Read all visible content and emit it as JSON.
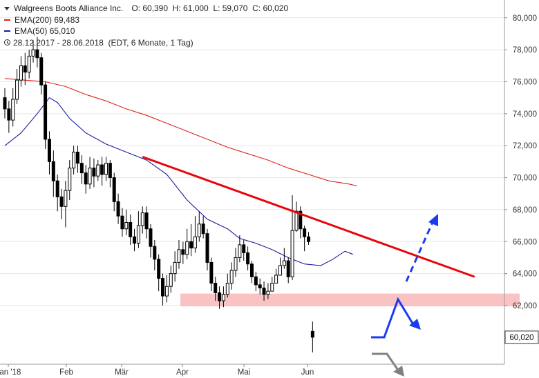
{
  "header": {
    "title": "Walgreens Boots Alliance Inc.",
    "ohlc": "O: 60,390  H: 61,000  L: 59,070  C: 60,020",
    "ema200_label": "EMA(200)",
    "ema200_value": "69,483",
    "ema50_label": "EMA(50)",
    "ema50_value": "65,010",
    "period": "28.12.2017 - 28.06.2018",
    "period_note": "(EDT, 6 Monate, 1 Tag)"
  },
  "colors": {
    "ema200": "#e0201b",
    "ema50": "#1c1c9c",
    "trendline": "#e8050b",
    "support_zone": "#f9b9b9",
    "arrow_blue": "#1a3bf2",
    "arrow_gray": "#808080",
    "candle": "#000000"
  },
  "chart_data": {
    "type": "candlestick",
    "ylim": [
      59.0,
      82.4
    ],
    "yticks": [
      "62,000",
      "64,000",
      "66,000",
      "68,000",
      "70,000",
      "72,000",
      "74,000",
      "76,000",
      "78,000",
      "80,000",
      "82,000"
    ],
    "xlabels": [
      "Jan '18",
      "Feb",
      "Mär",
      "Apr",
      "Mai",
      "Jun"
    ],
    "last_price_label": "60,020",
    "candles": [
      [
        75.0,
        74.3,
        75.6,
        73.7
      ],
      [
        74.3,
        73.6,
        74.8,
        72.8
      ],
      [
        73.6,
        74.9,
        75.6,
        73.2
      ],
      [
        74.9,
        76.1,
        76.8,
        74.6
      ],
      [
        76.1,
        77.0,
        77.6,
        75.7
      ],
      [
        77.0,
        76.6,
        77.8,
        75.8
      ],
      [
        76.6,
        77.6,
        78.0,
        76.2
      ],
      [
        77.6,
        78.0,
        78.6,
        77.2
      ],
      [
        78.0,
        77.5,
        78.8,
        76.9
      ],
      [
        77.5,
        75.8,
        77.8,
        75.2
      ],
      [
        75.8,
        72.4,
        76.0,
        71.8
      ],
      [
        72.4,
        71.0,
        72.9,
        70.2
      ],
      [
        71.0,
        69.8,
        71.7,
        68.8
      ],
      [
        69.8,
        68.8,
        70.2,
        67.9
      ],
      [
        68.8,
        68.2,
        69.3,
        67.4
      ],
      [
        68.2,
        69.2,
        69.8,
        66.9
      ],
      [
        69.2,
        70.6,
        71.1,
        68.6
      ],
      [
        70.6,
        71.6,
        72.0,
        70.2
      ],
      [
        71.6,
        70.9,
        72.0,
        70.3
      ],
      [
        70.9,
        70.3,
        71.4,
        69.6
      ],
      [
        70.3,
        69.6,
        70.8,
        69.0
      ],
      [
        69.6,
        70.6,
        71.3,
        69.3
      ],
      [
        70.6,
        70.1,
        71.2,
        69.4
      ],
      [
        70.1,
        70.8,
        71.1,
        69.8
      ],
      [
        70.8,
        70.2,
        71.3,
        69.5
      ],
      [
        70.2,
        70.9,
        71.3,
        69.8
      ],
      [
        70.9,
        70.0,
        71.1,
        69.4
      ],
      [
        70.0,
        68.5,
        70.3,
        67.9
      ],
      [
        68.5,
        67.6,
        69.0,
        67.1
      ],
      [
        67.6,
        66.8,
        68.1,
        66.3
      ],
      [
        66.8,
        67.2,
        68.0,
        66.4
      ],
      [
        67.2,
        66.3,
        67.7,
        65.8
      ],
      [
        66.3,
        65.9,
        66.8,
        65.4
      ],
      [
        65.9,
        67.0,
        67.9,
        65.6
      ],
      [
        67.0,
        67.8,
        68.2,
        66.5
      ],
      [
        67.8,
        66.8,
        68.2,
        66.2
      ],
      [
        66.8,
        65.7,
        67.1,
        65.0
      ],
      [
        65.7,
        64.9,
        66.1,
        64.2
      ],
      [
        64.9,
        63.7,
        65.2,
        62.9
      ],
      [
        63.7,
        62.6,
        64.0,
        62.0
      ],
      [
        62.6,
        63.2,
        63.9,
        62.2
      ],
      [
        63.2,
        64.0,
        64.5,
        62.8
      ],
      [
        64.0,
        64.7,
        65.4,
        63.5
      ],
      [
        64.7,
        65.5,
        66.1,
        64.3
      ],
      [
        65.5,
        65.2,
        66.0,
        64.6
      ],
      [
        65.2,
        66.0,
        66.8,
        64.9
      ],
      [
        66.0,
        65.6,
        67.1,
        65.1
      ],
      [
        65.6,
        66.3,
        67.6,
        65.3
      ],
      [
        66.3,
        67.1,
        67.9,
        66.0
      ],
      [
        67.1,
        66.5,
        67.6,
        66.2
      ],
      [
        66.5,
        64.7,
        66.8,
        64.2
      ],
      [
        64.7,
        63.4,
        65.0,
        62.9
      ],
      [
        63.4,
        62.8,
        63.8,
        62.3
      ],
      [
        62.8,
        62.3,
        63.2,
        61.8
      ],
      [
        62.3,
        62.7,
        63.2,
        61.9
      ],
      [
        62.7,
        63.4,
        64.0,
        62.5
      ],
      [
        63.4,
        64.2,
        64.7,
        63.0
      ],
      [
        64.2,
        65.0,
        65.6,
        63.8
      ],
      [
        65.0,
        65.8,
        66.4,
        64.7
      ],
      [
        65.8,
        65.3,
        66.1,
        64.8
      ],
      [
        65.3,
        64.6,
        65.7,
        64.2
      ],
      [
        64.6,
        63.8,
        64.8,
        63.4
      ],
      [
        63.8,
        63.3,
        64.1,
        62.9
      ],
      [
        63.3,
        63.1,
        63.7,
        62.7
      ],
      [
        63.1,
        62.7,
        63.5,
        62.3
      ],
      [
        62.7,
        62.9,
        63.4,
        62.4
      ],
      [
        62.9,
        63.4,
        63.8,
        62.9
      ],
      [
        63.4,
        63.9,
        64.3,
        63.5
      ],
      [
        63.9,
        64.5,
        65.0,
        64.0
      ],
      [
        64.5,
        64.8,
        65.6,
        64.3
      ],
      [
        64.8,
        63.8,
        65.0,
        63.4
      ],
      [
        63.8,
        66.7,
        68.9,
        63.6
      ],
      [
        66.7,
        67.9,
        68.5,
        66.6
      ],
      [
        67.9,
        66.8,
        68.2,
        66.2
      ],
      [
        66.8,
        66.3,
        67.0,
        65.4
      ],
      [
        66.3,
        66.0,
        66.6,
        65.8
      ],
      [
        60.39,
        60.02,
        61.0,
        59.07
      ]
    ],
    "ema200": [
      [
        0,
        76.2
      ],
      [
        5,
        76.1
      ],
      [
        10,
        76.0
      ],
      [
        15,
        75.7
      ],
      [
        20,
        75.2
      ],
      [
        25,
        74.8
      ],
      [
        30,
        74.3
      ],
      [
        35,
        73.9
      ],
      [
        40,
        73.4
      ],
      [
        45,
        72.9
      ],
      [
        50,
        72.4
      ],
      [
        55,
        71.9
      ],
      [
        60,
        71.5
      ],
      [
        65,
        71.1
      ],
      [
        70,
        70.6
      ],
      [
        75,
        70.2
      ],
      [
        80,
        69.8
      ],
      [
        85,
        69.6
      ],
      [
        87,
        69.48
      ]
    ],
    "ema50": [
      [
        0,
        72.0
      ],
      [
        4,
        72.8
      ],
      [
        8,
        74.0
      ],
      [
        11,
        75.0
      ],
      [
        13,
        74.7
      ],
      [
        16,
        73.7
      ],
      [
        20,
        72.8
      ],
      [
        25,
        72.1
      ],
      [
        30,
        71.6
      ],
      [
        35,
        71.1
      ],
      [
        40,
        70.2
      ],
      [
        45,
        68.6
      ],
      [
        50,
        67.4
      ],
      [
        55,
        66.8
      ],
      [
        58,
        66.2
      ],
      [
        62,
        65.9
      ],
      [
        66,
        65.5
      ],
      [
        70,
        65.0
      ],
      [
        74,
        64.6
      ],
      [
        78,
        64.5
      ],
      [
        81,
        64.9
      ],
      [
        84,
        65.4
      ],
      [
        86,
        65.2
      ]
    ],
    "trendline": [
      [
        34,
        71.3
      ],
      [
        116,
        63.8
      ]
    ],
    "support_zone": [
      61.95,
      62.75
    ]
  }
}
